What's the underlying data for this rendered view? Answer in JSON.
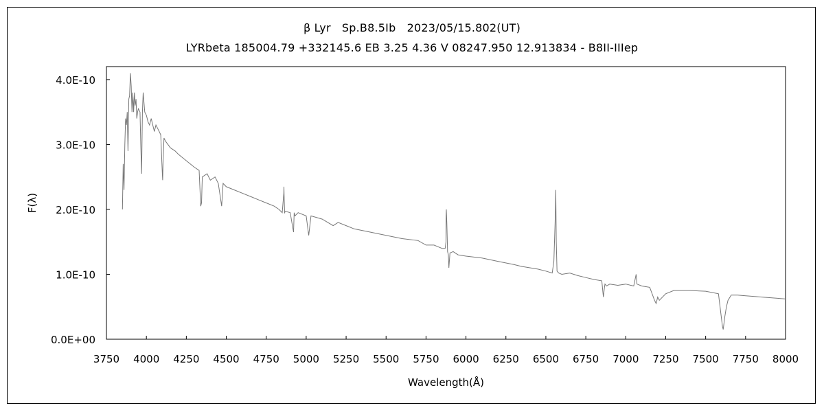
{
  "chart_data": {
    "type": "line",
    "title": "β Lyr　Sp.B8.5Ib　2023/05/15.802(UT)",
    "subtitle": "LYRbeta 185004.79 +332145.6 EB 3.25 4.36 V 08247.950 12.913834 - B8II-IIIep",
    "xlabel": "Wavelength(Å)",
    "ylabel": "F(λ)",
    "xlim": [
      3750,
      8000
    ],
    "ylim": [
      0,
      4.2e-10
    ],
    "grid": false,
    "legend": "none",
    "x_ticks": [
      "3750",
      "4000",
      "4250",
      "4500",
      "4750",
      "5000",
      "5250",
      "5500",
      "5750",
      "6000",
      "6250",
      "6500",
      "6750",
      "7000",
      "7250",
      "7500",
      "7750",
      "8000"
    ],
    "y_ticks": [
      "0.0E+00",
      "1.0E-10",
      "2.0E-10",
      "3.0E-10",
      "4.0E-10"
    ],
    "line_color": "#777777",
    "series": [
      {
        "x": [
          3850,
          3855,
          3860,
          3865,
          3870,
          3875,
          3880,
          3885,
          3890,
          3895,
          3900,
          3905,
          3910,
          3915,
          3920,
          3925,
          3930,
          3935,
          3940,
          3945,
          3950,
          3960,
          3965,
          3970,
          3975,
          3980,
          3990,
          4000,
          4010,
          4020,
          4030,
          4040,
          4050,
          4060,
          4070,
          4080,
          4090,
          4100,
          4102,
          4104,
          4110,
          4120,
          4150,
          4180,
          4200,
          4250,
          4300,
          4330,
          4340,
          4345,
          4350,
          4380,
          4400,
          4430,
          4450,
          4471,
          4480,
          4500,
          4550,
          4600,
          4650,
          4700,
          4750,
          4800,
          4830,
          4850,
          4860,
          4861,
          4862,
          4865,
          4870,
          4900,
          4921,
          4925,
          4930,
          4950,
          5000,
          5016,
          5030,
          5100,
          5169,
          5200,
          5250,
          5300,
          5400,
          5500,
          5600,
          5700,
          5750,
          5800,
          5850,
          5870,
          5875,
          5876,
          5877,
          5880,
          5885,
          5890,
          5893,
          5896,
          5900,
          5920,
          5950,
          6000,
          6100,
          6200,
          6300,
          6350,
          6400,
          6450,
          6500,
          6540,
          6550,
          6558,
          6562,
          6565,
          6570,
          6580,
          6600,
          6650,
          6700,
          6750,
          6800,
          6850,
          6860,
          6867,
          6870,
          6880,
          6900,
          6950,
          7000,
          7050,
          7065,
          7070,
          7100,
          7150,
          7180,
          7190,
          7200,
          7210,
          7250,
          7300,
          7400,
          7500,
          7580,
          7590,
          7600,
          7605,
          7610,
          7620,
          7630,
          7640,
          7660,
          7700,
          7750,
          7800,
          7850,
          7900,
          7950,
          8000
        ],
        "y": [
          2e-10,
          2.7e-10,
          2.3e-10,
          3e-10,
          3.4e-10,
          3.3e-10,
          3.5e-10,
          2.9e-10,
          3.7e-10,
          3.75e-10,
          4.1e-10,
          3.9e-10,
          3.5e-10,
          3.8e-10,
          3.5e-10,
          3.8e-10,
          3.6e-10,
          3.7e-10,
          3.4e-10,
          3.5e-10,
          3.55e-10,
          3.5e-10,
          3e-10,
          2.55e-10,
          3.5e-10,
          3.8e-10,
          3.5e-10,
          3.45e-10,
          3.35e-10,
          3.3e-10,
          3.4e-10,
          3.3e-10,
          3.2e-10,
          3.3e-10,
          3.25e-10,
          3.2e-10,
          3.15e-10,
          2.55e-10,
          2.45e-10,
          2.7e-10,
          3.1e-10,
          3.05e-10,
          2.95e-10,
          2.9e-10,
          2.85e-10,
          2.75e-10,
          2.65e-10,
          2.6e-10,
          2.05e-10,
          2.1e-10,
          2.5e-10,
          2.55e-10,
          2.45e-10,
          2.5e-10,
          2.4e-10,
          2.05e-10,
          2.4e-10,
          2.35e-10,
          2.3e-10,
          2.25e-10,
          2.2e-10,
          2.15e-10,
          2.1e-10,
          2.05e-10,
          2e-10,
          1.95e-10,
          2.25e-10,
          2.35e-10,
          2.2e-10,
          1.95e-10,
          1.97e-10,
          1.95e-10,
          1.65e-10,
          1.95e-10,
          1.9e-10,
          1.95e-10,
          1.9e-10,
          1.6e-10,
          1.9e-10,
          1.85e-10,
          1.75e-10,
          1.8e-10,
          1.75e-10,
          1.7e-10,
          1.65e-10,
          1.6e-10,
          1.55e-10,
          1.52e-10,
          1.45e-10,
          1.45e-10,
          1.4e-10,
          1.4e-10,
          1.5e-10,
          1.9e-10,
          2e-10,
          1.8e-10,
          1.35e-10,
          1.3e-10,
          1.1e-10,
          1.2e-10,
          1.33e-10,
          1.35e-10,
          1.3e-10,
          1.28e-10,
          1.25e-10,
          1.2e-10,
          1.15e-10,
          1.12e-10,
          1.1e-10,
          1.08e-10,
          1.05e-10,
          1.02e-10,
          1.2e-10,
          1.8e-10,
          2.3e-10,
          1.5e-10,
          1.05e-10,
          1.02e-10,
          1e-10,
          1.02e-10,
          9.8e-11,
          9.5e-11,
          9.2e-11,
          9e-11,
          6.5e-11,
          8e-11,
          8.5e-11,
          8.2e-11,
          8.5e-11,
          8.3e-11,
          8.5e-11,
          8.2e-11,
          1e-10,
          8.5e-11,
          8.2e-11,
          8e-11,
          6e-11,
          5.5e-11,
          6.5e-11,
          6e-11,
          7e-11,
          7.5e-11,
          7.5e-11,
          7.4e-11,
          7e-11,
          5e-11,
          3e-11,
          2e-11,
          1.5e-11,
          3.5e-11,
          5e-11,
          6e-11,
          6.8e-11,
          6.8e-11,
          6.7e-11,
          6.6e-11,
          6.5e-11,
          6.4e-11,
          6.3e-11,
          6.2e-11
        ]
      }
    ]
  }
}
